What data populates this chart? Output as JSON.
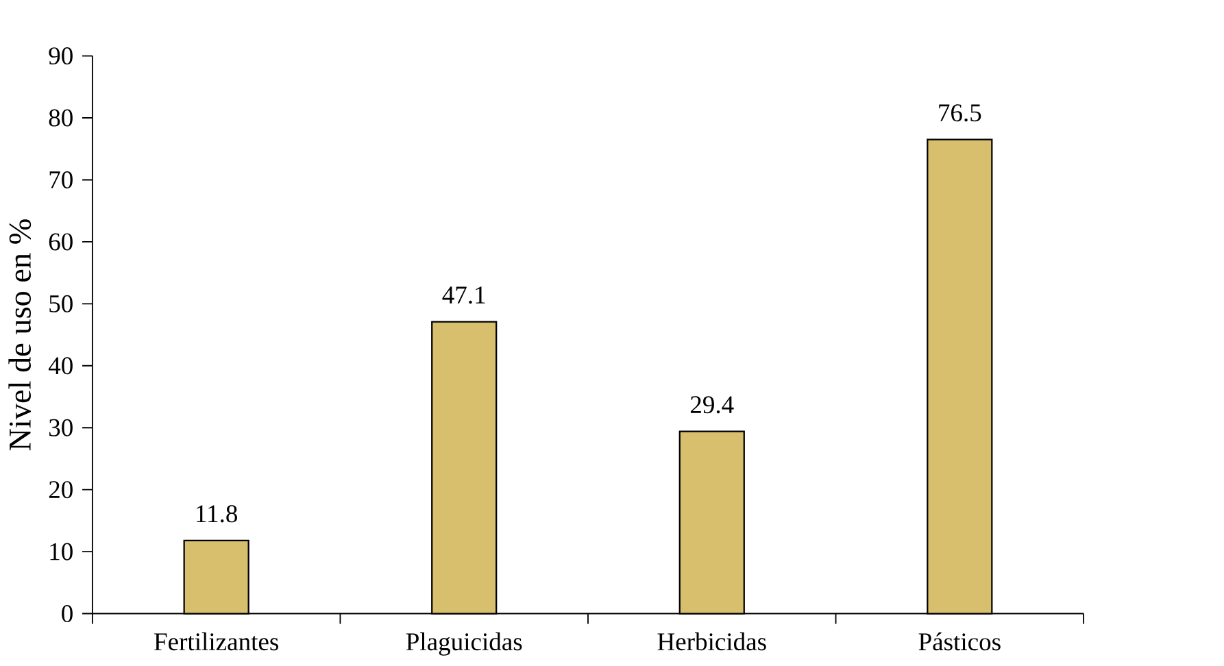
{
  "chart_data": {
    "type": "bar",
    "ylabel": "Nivel de uso en %",
    "categories": [
      "Fertilizantes",
      "Plaguicidas",
      "Herbicidas",
      "Pásticos"
    ],
    "values": [
      11.8,
      47.1,
      29.4,
      76.5
    ],
    "color": "#d8bf6e",
    "ylim": [
      0,
      90
    ],
    "yticks": [
      0,
      10,
      20,
      30,
      40,
      50,
      60,
      70,
      80,
      90
    ],
    "grid": false,
    "data_labels": true
  }
}
